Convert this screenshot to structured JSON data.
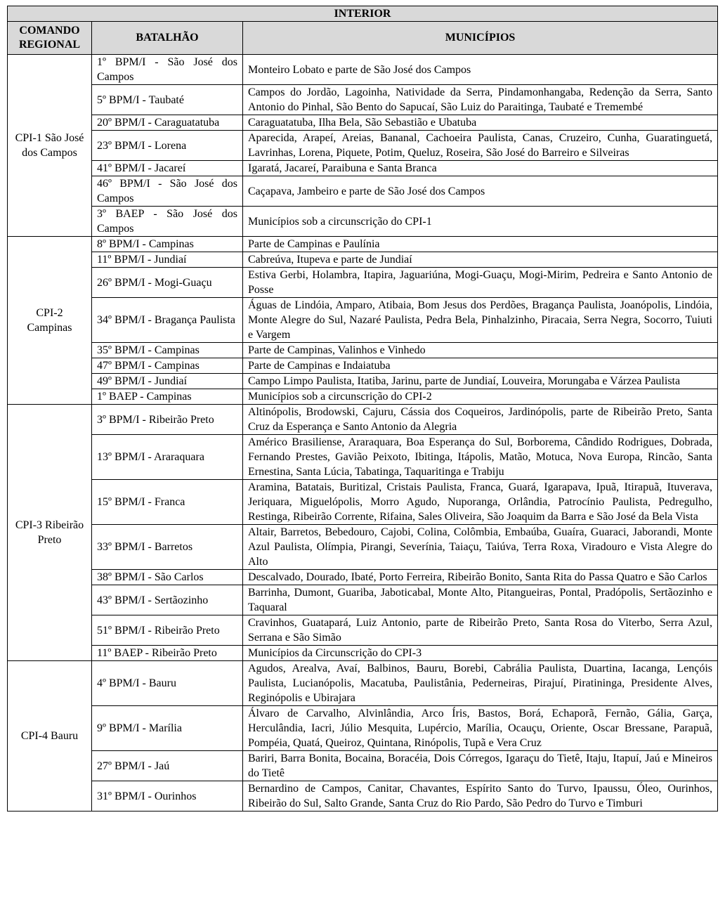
{
  "title": "INTERIOR",
  "headers": {
    "comando": "COMANDO REGIONAL",
    "batalhao": "BATALHÃO",
    "municipios": "MUNICÍPIOS"
  },
  "regions": [
    {
      "name": "CPI-1 São José dos Campos",
      "rows": [
        {
          "batalhao": "1º BPM/I - São José dos Campos",
          "municipios": "Monteiro Lobato e parte de São José dos Campos"
        },
        {
          "batalhao": "5º BPM/I - Taubaté",
          "municipios": "Campos do Jordão, Lagoinha, Natividade da Serra, Pindamonhangaba, Redenção da Serra, Santo Antonio do Pinhal, São Bento do Sapucaí, São Luiz do Paraitinga, Taubaté e Tremembé"
        },
        {
          "batalhao": "20º BPM/I - Caraguatatuba",
          "municipios": "Caraguatatuba, Ilha Bela, São Sebastião e Ubatuba"
        },
        {
          "batalhao": "23º BPM/I - Lorena",
          "municipios": "Aparecida, Arapeí, Areias, Bananal, Cachoeira Paulista, Canas, Cruzeiro, Cunha, Guaratinguetá, Lavrinhas, Lorena, Piquete, Potim, Queluz, Roseira, São José do Barreiro e Silveiras"
        },
        {
          "batalhao": "41º BPM/I - Jacareí",
          "municipios": "Igaratá, Jacareí, Paraibuna e Santa Branca"
        },
        {
          "batalhao": "46º BPM/I - São José dos Campos",
          "municipios": "Caçapava, Jambeiro e parte de São José dos Campos"
        },
        {
          "batalhao": "3º BAEP - São José dos Campos",
          "municipios": "Municípios sob a circunscrição do CPI-1"
        }
      ]
    },
    {
      "name": "CPI-2 Campinas",
      "rows": [
        {
          "batalhao": "8º BPM/I - Campinas",
          "municipios": "Parte de Campinas e Paulínia"
        },
        {
          "batalhao": "11º BPM/I - Jundiaí",
          "municipios": "Cabreúva, Itupeva e parte de Jundiaí"
        },
        {
          "batalhao": "26º BPM/I - Mogi-Guaçu",
          "municipios": "Estiva Gerbi, Holambra, Itapira, Jaguariúna, Mogi-Guaçu, Mogi-Mirim, Pedreira e Santo Antonio de Posse"
        },
        {
          "batalhao": "34º BPM/I - Bragança Paulista",
          "municipios": "Águas de Lindóia, Amparo, Atibaia, Bom Jesus dos Perdões, Bragança Paulista, Joanópolis, Lindóia, Monte Alegre do Sul, Nazaré Paulista, Pedra Bela, Pinhalzinho, Piracaia, Serra Negra, Socorro, Tuiuti e Vargem"
        },
        {
          "batalhao": "35º BPM/I - Campinas",
          "municipios": "Parte de Campinas, Valinhos e Vinhedo"
        },
        {
          "batalhao": "47º BPM/I - Campinas",
          "municipios": "Parte de Campinas e Indaiatuba"
        },
        {
          "batalhao": "49º BPM/I - Jundiaí",
          "municipios": "Campo Limpo Paulista, Itatiba, Jarinu, parte de Jundiaí, Louveira, Morungaba e Várzea Paulista"
        },
        {
          "batalhao": "1º BAEP - Campinas",
          "municipios": "Municípios sob a circunscrição do CPI-2"
        }
      ]
    },
    {
      "name": "CPI-3 Ribeirão Preto",
      "rows": [
        {
          "batalhao": "3º BPM/I - Ribeirão Preto",
          "municipios": "Altinópolis, Brodowski, Cajuru, Cássia dos Coqueiros, Jardinópolis, parte de Ribeirão Preto, Santa Cruz da Esperança e Santo Antonio da Alegria"
        },
        {
          "batalhao": "13º BPM/I - Araraquara",
          "municipios": "Américo Brasiliense, Araraquara, Boa Esperança do Sul, Borborema, Cândido Rodrigues, Dobrada, Fernando Prestes, Gavião Peixoto, Ibitinga, Itápolis, Matão, Motuca, Nova Europa, Rincão, Santa Ernestina, Santa Lúcia, Tabatinga, Taquaritinga e Trabiju"
        },
        {
          "batalhao": "15º BPM/I - Franca",
          "municipios": "Aramina, Batatais, Buritizal, Cristais Paulista, Franca, Guará, Igarapava, Ipuã, Itirapuã, Ituverava, Jeriquara, Miguelópolis, Morro Agudo, Nuporanga, Orlândia, Patrocínio Paulista, Pedregulho, Restinga, Ribeirão Corrente, Rifaina, Sales Oliveira, São Joaquim da Barra e São José da Bela Vista"
        },
        {
          "batalhao": "33º BPM/I - Barretos",
          "municipios": "Altair, Barretos, Bebedouro, Cajobi, Colina, Colômbia, Embaúba, Guaíra, Guaraci, Jaborandi, Monte Azul Paulista, Olímpia, Pirangi, Severínia, Taiaçu, Taiúva, Terra Roxa, Viradouro e Vista Alegre do Alto"
        },
        {
          "batalhao": "38º BPM/I - São Carlos",
          "municipios": "Descalvado, Dourado, Ibaté, Porto Ferreira, Ribeirão Bonito, Santa Rita do Passa Quatro e São Carlos"
        },
        {
          "batalhao": "43º BPM/I - Sertãozinho",
          "municipios": "Barrinha, Dumont, Guariba, Jaboticabal, Monte Alto, Pitangueiras, Pontal, Pradópolis, Sertãozinho e Taquaral"
        },
        {
          "batalhao": "51º BPM/I - Ribeirão Preto",
          "municipios": "Cravinhos, Guatapará, Luiz Antonio, parte de Ribeirão Preto, Santa Rosa do Viterbo, Serra Azul, Serrana e São Simão"
        },
        {
          "batalhao": "11º BAEP - Ribeirão Preto",
          "municipios": "Municípios da Circunscrição do CPI-3"
        }
      ]
    },
    {
      "name": "CPI-4 Bauru",
      "rows": [
        {
          "batalhao": "4º BPM/I - Bauru",
          "municipios": "Agudos, Arealva, Avaí, Balbinos, Bauru, Borebi, Cabrália Paulista, Duartina, Iacanga, Lençóis Paulista, Lucianópolis, Macatuba, Paulistânia, Pederneiras, Pirajuí, Piratininga, Presidente Alves, Reginópolis e Ubirajara"
        },
        {
          "batalhao": "9º BPM/I - Marília",
          "municipios": "Álvaro de Carvalho, Alvinlândia, Arco Íris, Bastos, Borá, Echaporã, Fernão, Gália, Garça, Herculândia, Iacri, Júlio Mesquita, Lupércio, Marília, Ocauçu, Oriente, Oscar Bressane, Parapuã, Pompéia, Quatá, Queiroz, Quintana, Rinópolis, Tupã e Vera Cruz"
        },
        {
          "batalhao": "27º BPM/I - Jaú",
          "municipios": "Bariri, Barra Bonita, Bocaina, Boracéia, Dois Córregos, Igaraçu do Tietê, Itaju, Itapuí, Jaú e Mineiros do Tietê"
        },
        {
          "batalhao": "31º BPM/I - Ourinhos",
          "municipios": "Bernardino de Campos, Canitar, Chavantes, Espírito Santo do Turvo, Ipaussu, Óleo, Ourinhos, Ribeirão do Sul, Salto Grande, Santa Cruz do Rio Pardo, São Pedro do Turvo e Timburi"
        }
      ]
    }
  ]
}
